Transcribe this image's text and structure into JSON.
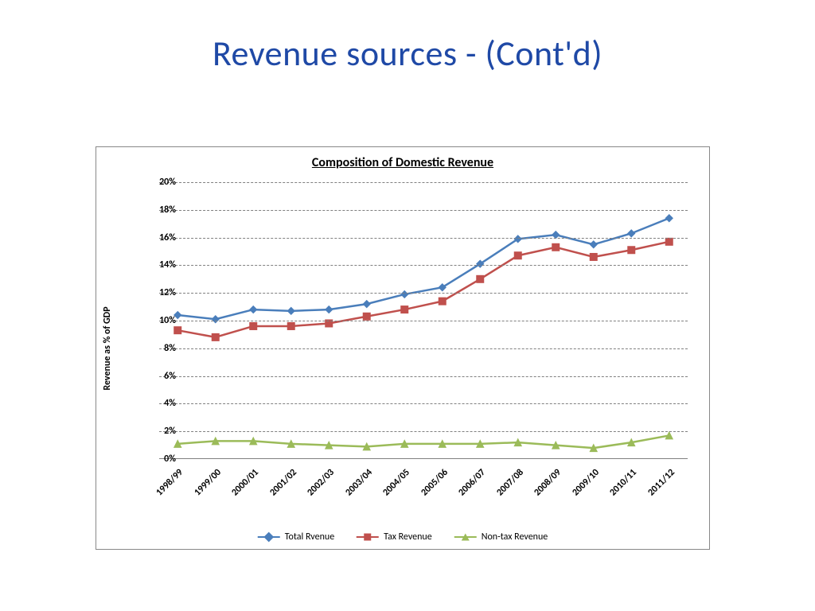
{
  "slide": {
    "title": "Revenue sources - (Cont'd)",
    "title_color": "#1f49a6",
    "title_fontsize": 44
  },
  "chart": {
    "type": "line",
    "title": "Composition of Domestic Revenue",
    "title_fontsize": 16,
    "background_color": "#ffffff",
    "border_color": "#888888",
    "grid_color": "#808080",
    "grid_style": "dashed",
    "y_axis": {
      "label": "Revenue as % of GDP",
      "min": 0,
      "max": 20,
      "tick_step": 2,
      "ticks": [
        "0%",
        "2%",
        "4%",
        "6%",
        "8%",
        "10%",
        "12%",
        "14%",
        "16%",
        "18%",
        "20%"
      ],
      "label_fontsize": 12,
      "tick_fontsize": 12
    },
    "x_axis": {
      "categories": [
        "1998/99",
        "1999/00",
        "2000/01",
        "2001/02",
        "2002/03",
        "2003/04",
        "2004/05",
        "2005/06",
        "2006/07",
        "2007/08",
        "2008/09",
        "2009/10",
        "2010/11",
        "2011/12"
      ],
      "tick_rotation": -45,
      "tick_fontsize": 12
    },
    "series": [
      {
        "name": "Total Rvenue",
        "color": "#4a7ebb",
        "marker": "diamond",
        "marker_size": 9,
        "line_width": 2.5,
        "values": [
          10.4,
          10.1,
          10.8,
          10.7,
          10.8,
          11.2,
          11.9,
          12.4,
          14.1,
          15.9,
          16.2,
          15.5,
          16.3,
          17.4
        ]
      },
      {
        "name": "Tax Revenue",
        "color": "#c0504d",
        "marker": "square",
        "marker_size": 9,
        "line_width": 2.5,
        "values": [
          9.3,
          8.8,
          9.6,
          9.6,
          9.8,
          10.3,
          10.8,
          11.4,
          13.0,
          14.7,
          15.3,
          14.6,
          15.1,
          15.7
        ]
      },
      {
        "name": "Non-tax Revenue",
        "color": "#9bbb59",
        "marker": "triangle",
        "marker_size": 9,
        "line_width": 2.5,
        "values": [
          1.1,
          1.3,
          1.3,
          1.1,
          1.0,
          0.9,
          1.1,
          1.1,
          1.1,
          1.2,
          1.0,
          0.8,
          1.2,
          1.7
        ]
      }
    ],
    "legend": {
      "position": "bottom",
      "fontsize": 12,
      "items": [
        "Total Rvenue",
        "Tax Revenue",
        "Non-tax Revenue"
      ]
    }
  }
}
